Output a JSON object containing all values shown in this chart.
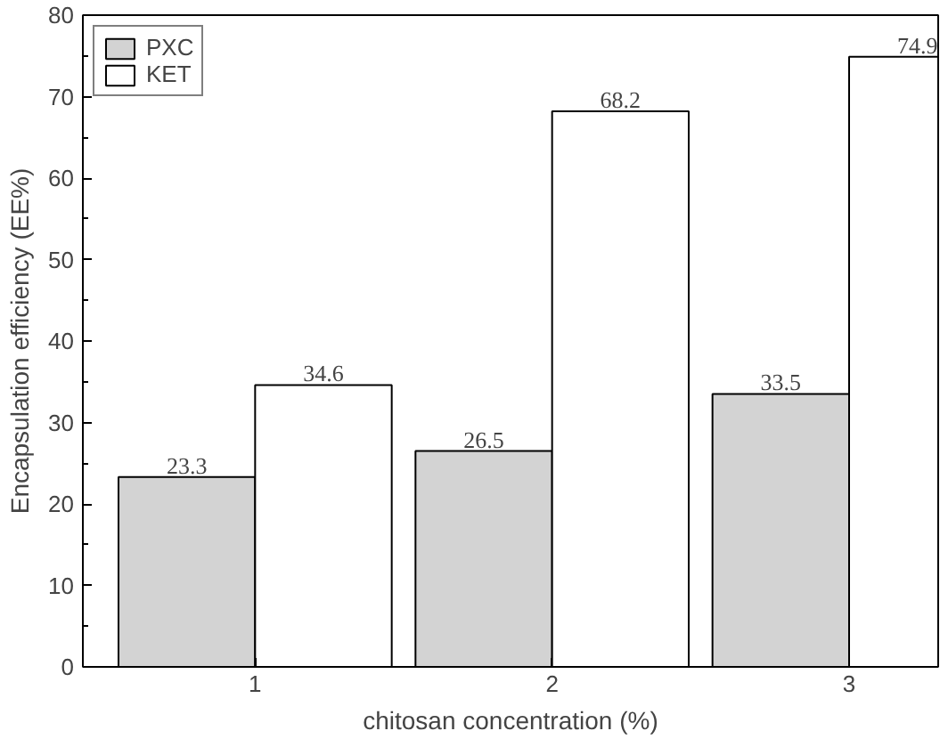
{
  "chart_data": {
    "type": "bar",
    "xlabel": "chitosan concentration (%)",
    "ylabel": "Encapsulation efficiency (EE%)",
    "x": [
      1,
      2,
      3
    ],
    "xlim": [
      0.42,
      3.3
    ],
    "xticks": [
      1,
      2,
      3
    ],
    "ylim": [
      0,
      80
    ],
    "yticks": [
      0,
      10,
      20,
      30,
      40,
      50,
      60,
      70,
      80
    ],
    "series": [
      {
        "name": "PXC",
        "color": "#d3d3d3",
        "values": [
          23.3,
          26.5,
          33.5
        ]
      },
      {
        "name": "KET",
        "color": "#ffffff",
        "values": [
          34.6,
          68.2,
          74.9
        ]
      }
    ],
    "data_labels": true,
    "legend": "top left",
    "grid": false
  }
}
